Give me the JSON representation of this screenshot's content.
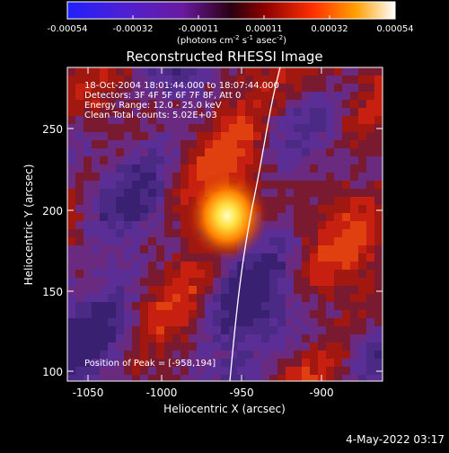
{
  "colorbar": {
    "ticks": [
      "-0.00054",
      "-0.00032",
      "-0.00011",
      "0.00011",
      "0.00032",
      "0.00054"
    ],
    "units_prefix": "(photons cm",
    "units_exp1": "-2",
    "units_mid": " s",
    "units_exp2": "-1",
    "units_mid2": " asec",
    "units_exp3": "-2",
    "units_suffix": ")"
  },
  "plot": {
    "title": "Reconstructed RHESSI Image",
    "info_lines": [
      "18-Oct-2004 18:01:44.000 to 18:07:44.000",
      "Detectors: 3F 4F 5F 6F 7F 8F, Att 0",
      "Energy Range: 12.0 - 25.0 keV",
      "Clean     Total counts: 5.02E+03"
    ],
    "peak_label": "Position of Peak = [-958,194]",
    "xlabel": "Heliocentric X (arcsec)",
    "ylabel": "Heliocentric Y (arcsec)",
    "xticks": [
      "-1050",
      "-1000",
      "-950",
      "-900"
    ],
    "yticks": [
      "100",
      "150",
      "200",
      "250"
    ]
  },
  "timestamp": "4-May-2022 03:17",
  "colors": {
    "background": "#000000",
    "axes": "#ffffff",
    "limb": "#ffffff",
    "purple": "#4a2a85",
    "red": "#b81d10",
    "hot": "#ffe35a"
  }
}
